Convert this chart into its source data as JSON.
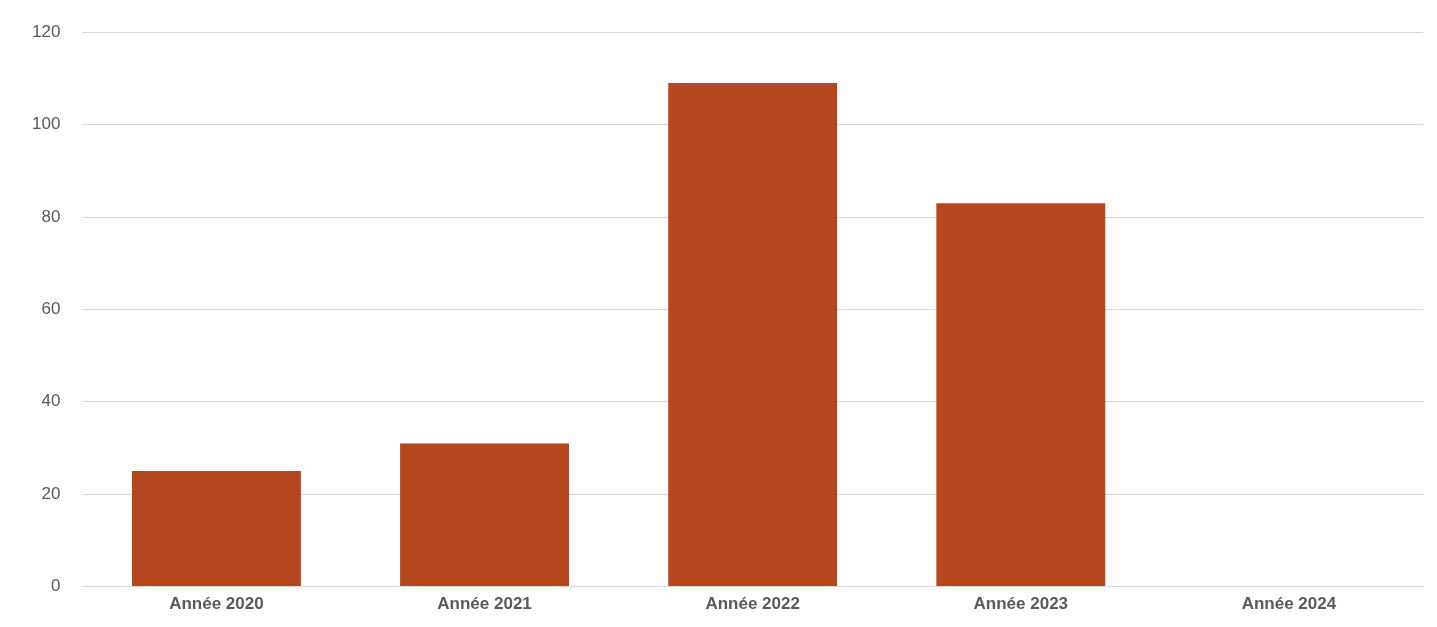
{
  "chart_data": {
    "type": "bar",
    "categories": [
      "Année 2020",
      "Année 2021",
      "Année 2022",
      "Année 2023",
      "Année 2024"
    ],
    "values": [
      25,
      31,
      109,
      83,
      null
    ],
    "color": "#b5471f",
    "ylim": [
      0,
      120
    ],
    "yticks": [
      0,
      20,
      40,
      60,
      80,
      100,
      120
    ],
    "grid": "y"
  }
}
